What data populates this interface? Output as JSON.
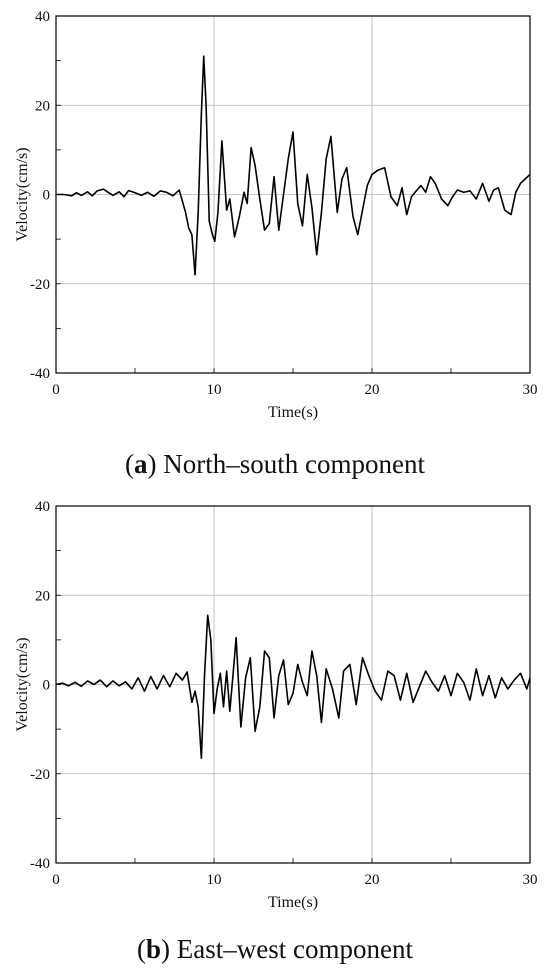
{
  "chart_data": [
    {
      "type": "line",
      "panel_letter": "a",
      "caption": "North–south component",
      "xlabel": "Time(s)",
      "ylabel": "Velocity(cm/s)",
      "xlim": [
        0,
        30
      ],
      "ylim": [
        -40,
        40
      ],
      "x_ticks": [
        0,
        10,
        20,
        30
      ],
      "y_ticks": [
        -40,
        -20,
        0,
        20,
        40
      ],
      "grid": true,
      "x": [
        0.0,
        0.5,
        1.0,
        1.3,
        1.6,
        2.0,
        2.3,
        2.6,
        3.0,
        3.3,
        3.6,
        4.0,
        4.3,
        4.6,
        5.0,
        5.4,
        5.8,
        6.2,
        6.6,
        7.0,
        7.4,
        7.8,
        8.0,
        8.2,
        8.4,
        8.6,
        8.8,
        9.0,
        9.2,
        9.35,
        9.5,
        9.7,
        9.9,
        10.05,
        10.25,
        10.5,
        10.8,
        11.0,
        11.3,
        11.6,
        11.9,
        12.1,
        12.35,
        12.6,
        12.9,
        13.2,
        13.5,
        13.8,
        14.1,
        14.4,
        14.7,
        15.0,
        15.3,
        15.6,
        15.9,
        16.2,
        16.5,
        16.8,
        17.1,
        17.4,
        17.8,
        18.1,
        18.4,
        18.8,
        19.1,
        19.4,
        19.7,
        20.0,
        20.4,
        20.8,
        21.2,
        21.6,
        21.9,
        22.2,
        22.5,
        22.8,
        23.1,
        23.4,
        23.7,
        24.0,
        24.4,
        24.8,
        25.1,
        25.4,
        25.8,
        26.2,
        26.6,
        27.0,
        27.4,
        27.7,
        28.0,
        28.4,
        28.8,
        29.1,
        29.4,
        29.7,
        30.0
      ],
      "values": [
        0.0,
        0.0,
        -0.3,
        0.4,
        -0.2,
        0.6,
        -0.3,
        0.8,
        1.2,
        0.5,
        -0.2,
        0.6,
        -0.5,
        0.9,
        0.4,
        -0.2,
        0.5,
        -0.4,
        0.8,
        0.5,
        -0.3,
        1.0,
        -1.5,
        -4.0,
        -7.5,
        -9.0,
        -18.0,
        -4.0,
        18.0,
        31.0,
        20.0,
        -6.0,
        -9.0,
        -10.5,
        -4.0,
        12.0,
        -3.5,
        -1.0,
        -9.5,
        -5.0,
        0.5,
        -2.0,
        10.5,
        6.5,
        -1.0,
        -8.0,
        -6.5,
        4.0,
        -8.0,
        0.0,
        8.0,
        14.0,
        -2.0,
        -7.0,
        4.5,
        -3.0,
        -13.5,
        -4.0,
        8.0,
        13.0,
        -4.0,
        3.5,
        6.0,
        -5.0,
        -9.0,
        -3.5,
        2.0,
        4.5,
        5.5,
        6.0,
        -0.5,
        -2.5,
        1.5,
        -4.5,
        -0.5,
        0.8,
        2.0,
        0.5,
        4.0,
        2.5,
        -1.0,
        -2.5,
        -0.5,
        1.0,
        0.5,
        0.8,
        -1.0,
        2.5,
        -1.5,
        1.0,
        1.5,
        -3.5,
        -4.5,
        0.5,
        2.5,
        3.5,
        4.5
      ]
    },
    {
      "type": "line",
      "panel_letter": "b",
      "caption": "East–west component",
      "xlabel": "Time(s)",
      "ylabel": "Velocity(cm/s)",
      "xlim": [
        0,
        30
      ],
      "ylim": [
        -40,
        40
      ],
      "x_ticks": [
        0,
        10,
        20,
        30
      ],
      "y_ticks": [
        -40,
        -20,
        0,
        20,
        40
      ],
      "grid": true,
      "x": [
        0.0,
        0.4,
        0.8,
        1.2,
        1.6,
        2.0,
        2.4,
        2.8,
        3.2,
        3.6,
        4.0,
        4.4,
        4.8,
        5.2,
        5.6,
        6.0,
        6.4,
        6.8,
        7.2,
        7.6,
        8.0,
        8.3,
        8.6,
        8.8,
        9.0,
        9.2,
        9.4,
        9.6,
        9.8,
        10.0,
        10.2,
        10.4,
        10.6,
        10.8,
        11.0,
        11.2,
        11.4,
        11.7,
        12.0,
        12.3,
        12.6,
        12.9,
        13.2,
        13.5,
        13.8,
        14.1,
        14.4,
        14.7,
        15.0,
        15.3,
        15.6,
        15.9,
        16.2,
        16.5,
        16.8,
        17.1,
        17.5,
        17.9,
        18.2,
        18.6,
        19.0,
        19.4,
        19.8,
        20.2,
        20.6,
        21.0,
        21.4,
        21.8,
        22.2,
        22.6,
        23.0,
        23.4,
        23.8,
        24.2,
        24.6,
        25.0,
        25.4,
        25.8,
        26.2,
        26.6,
        27.0,
        27.4,
        27.8,
        28.2,
        28.6,
        29.0,
        29.4,
        29.8,
        30.0
      ],
      "values": [
        0.0,
        0.3,
        -0.3,
        0.5,
        -0.4,
        0.8,
        0.0,
        1.0,
        -0.5,
        0.8,
        -0.3,
        0.6,
        -1.0,
        1.5,
        -1.5,
        1.8,
        -1.0,
        2.0,
        -0.5,
        2.5,
        1.0,
        2.8,
        -4.0,
        -1.5,
        -5.0,
        -16.5,
        2.0,
        15.5,
        10.0,
        -6.5,
        -1.0,
        2.5,
        -5.0,
        3.0,
        -6.0,
        2.0,
        10.5,
        -9.5,
        1.5,
        6.0,
        -10.5,
        -5.0,
        7.5,
        6.0,
        -7.5,
        2.0,
        5.5,
        -4.5,
        -2.0,
        4.5,
        0.5,
        -2.5,
        7.5,
        2.0,
        -8.5,
        3.5,
        -1.0,
        -7.5,
        3.0,
        4.5,
        -4.5,
        6.0,
        2.0,
        -1.5,
        -3.5,
        3.0,
        2.0,
        -3.5,
        2.5,
        -4.0,
        -0.5,
        3.0,
        0.5,
        -1.5,
        2.0,
        -2.5,
        2.5,
        0.5,
        -3.5,
        3.5,
        -2.5,
        2.0,
        -3.0,
        1.5,
        -1.0,
        1.0,
        2.5,
        -1.0,
        1.5
      ]
    }
  ]
}
